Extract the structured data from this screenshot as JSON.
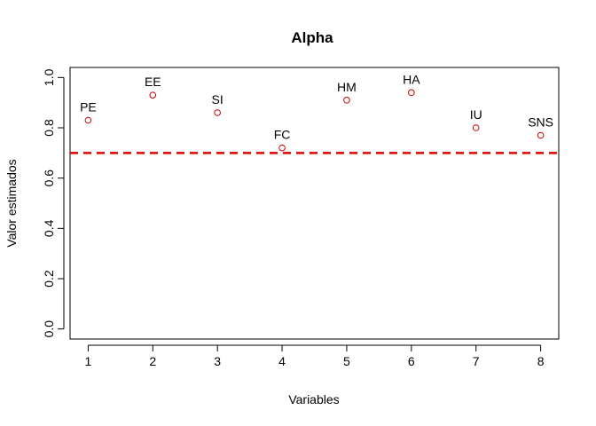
{
  "chart_data": {
    "type": "scatter",
    "title": "Alpha",
    "xlabel": "Variables",
    "ylabel": "Valor estimados",
    "xlim": [
      0.72,
      8.28
    ],
    "ylim": [
      -0.04,
      1.04
    ],
    "x_ticks": [
      1,
      2,
      3,
      4,
      5,
      6,
      7,
      8
    ],
    "y_ticks": [
      0.0,
      0.2,
      0.4,
      0.6,
      0.8,
      1.0
    ],
    "y_tick_labels": [
      "0.0",
      "0.2",
      "0.4",
      "0.6",
      "0.8",
      "1.0"
    ],
    "grid": false,
    "point_color": "#cc0000",
    "points": [
      {
        "x": 1,
        "y": 0.83,
        "label": "PE"
      },
      {
        "x": 2,
        "y": 0.93,
        "label": "EE"
      },
      {
        "x": 3,
        "y": 0.86,
        "label": "SI"
      },
      {
        "x": 4,
        "y": 0.72,
        "label": "FC"
      },
      {
        "x": 5,
        "y": 0.91,
        "label": "HM"
      },
      {
        "x": 6,
        "y": 0.94,
        "label": "HA"
      },
      {
        "x": 7,
        "y": 0.8,
        "label": "IU"
      },
      {
        "x": 8,
        "y": 0.77,
        "label": "SNS"
      }
    ],
    "reference_line": {
      "y": 0.7,
      "color": "#e00000",
      "style": "dashed"
    }
  }
}
